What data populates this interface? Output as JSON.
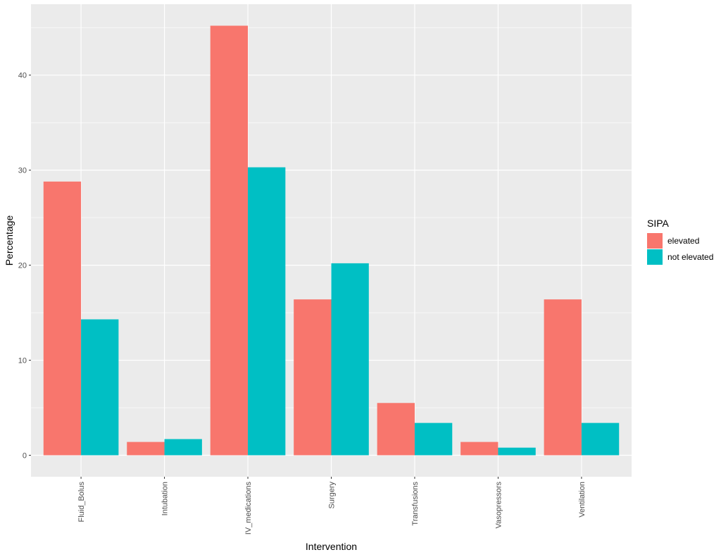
{
  "chart_data": {
    "type": "bar",
    "title": "",
    "xlabel": "Intervention",
    "ylabel": "Percentage",
    "categories": [
      "Fluid_Bolus",
      "Intubation",
      "IV_medications",
      "Surgery",
      "Transfusions",
      "Vasopressors",
      "Ventilation"
    ],
    "series": [
      {
        "name": "elevated",
        "color": "#F8766D",
        "values": [
          28.8,
          1.4,
          45.2,
          16.4,
          5.5,
          1.4,
          16.4
        ]
      },
      {
        "name": "not elevated",
        "color": "#00BFC4",
        "values": [
          14.3,
          1.7,
          30.3,
          20.2,
          3.4,
          0.8,
          3.4
        ]
      }
    ],
    "ylim": [
      -2.26,
      47.46
    ],
    "yticks": [
      0,
      10,
      20,
      30,
      40
    ],
    "grid": true,
    "legend": {
      "title": "SIPA",
      "placement": "right"
    },
    "panel_background": "#EBEBEB",
    "gridline_color": "#FFFFFF"
  }
}
